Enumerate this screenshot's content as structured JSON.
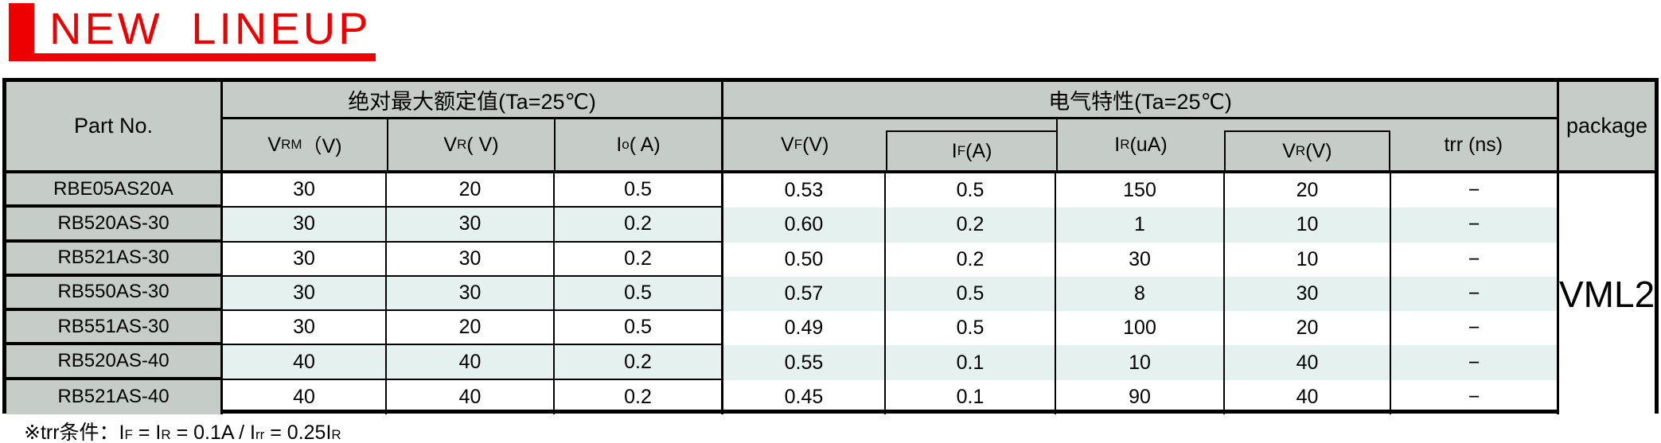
{
  "colors": {
    "accent_red": "#ee0000",
    "header_gray": "#c6cdc9",
    "row_alt_mint": "#e4f1ee",
    "border_black": "#000000"
  },
  "title": {
    "text": "NEW LINEUP"
  },
  "table": {
    "part_no_header": "Part No.",
    "sections": {
      "abs_max": "绝对最大额定值(Ta=25℃)",
      "elec": "电气特性(Ta=25℃)"
    },
    "columns": {
      "vrm": {
        "base": "V",
        "sub": "RM",
        "unit": "（V)"
      },
      "vr_max": {
        "base": "V",
        "sub": "R",
        "unit": "( V)"
      },
      "io": {
        "base": "I",
        "sub": "o",
        "unit": "( A)"
      },
      "vf": {
        "base": "V",
        "sub": "F",
        "unit": " (V)"
      },
      "if_cond": {
        "base": "I",
        "sub": "F",
        "unit": " (A)"
      },
      "ir": {
        "base": "I",
        "sub": "R",
        "unit": " (uA)"
      },
      "vr_cond": {
        "base": "V",
        "sub": "R",
        "unit": " (V)"
      },
      "trr": {
        "label": "trr (ns)"
      },
      "package": {
        "label": "package"
      }
    },
    "rows": [
      {
        "part": "RBE05AS20A",
        "vrm": "30",
        "vr": "20",
        "io": "0.5",
        "vf": "0.53",
        "if": "0.5",
        "ir": "150",
        "vr2": "20",
        "trr": "−"
      },
      {
        "part": "RB520AS-30",
        "vrm": "30",
        "vr": "30",
        "io": "0.2",
        "vf": "0.60",
        "if": "0.2",
        "ir": "1",
        "vr2": "10",
        "trr": "−"
      },
      {
        "part": "RB521AS-30",
        "vrm": "30",
        "vr": "30",
        "io": "0.2",
        "vf": "0.50",
        "if": "0.2",
        "ir": "30",
        "vr2": "10",
        "trr": "−"
      },
      {
        "part": "RB550AS-30",
        "vrm": "30",
        "vr": "30",
        "io": "0.5",
        "vf": "0.57",
        "if": "0.5",
        "ir": "8",
        "vr2": "30",
        "trr": "−"
      },
      {
        "part": "RB551AS-30",
        "vrm": "30",
        "vr": "20",
        "io": "0.5",
        "vf": "0.49",
        "if": "0.5",
        "ir": "100",
        "vr2": "20",
        "trr": "−"
      },
      {
        "part": "RB520AS-40",
        "vrm": "40",
        "vr": "40",
        "io": "0.2",
        "vf": "0.55",
        "if": "0.1",
        "ir": "10",
        "vr2": "40",
        "trr": "−"
      },
      {
        "part": "RB521AS-40",
        "vrm": "40",
        "vr": "40",
        "io": "0.2",
        "vf": "0.45",
        "if": "0.1",
        "ir": "90",
        "vr2": "40",
        "trr": "−"
      }
    ],
    "package_value": "VML2"
  },
  "footnote": {
    "segments": [
      {
        "t": "※trr条件：",
        "sub": false
      },
      {
        "t": "I",
        "sub": false
      },
      {
        "t": "F",
        "sub": true
      },
      {
        "t": " = ",
        "sub": false
      },
      {
        "t": "I",
        "sub": false
      },
      {
        "t": "R",
        "sub": true
      },
      {
        "t": " = 0.1A / ",
        "sub": false
      },
      {
        "t": "I",
        "sub": false
      },
      {
        "t": "rr",
        "sub": true
      },
      {
        "t": " = 0.25",
        "sub": false
      },
      {
        "t": "I",
        "sub": false
      },
      {
        "t": "R",
        "sub": true
      }
    ]
  }
}
